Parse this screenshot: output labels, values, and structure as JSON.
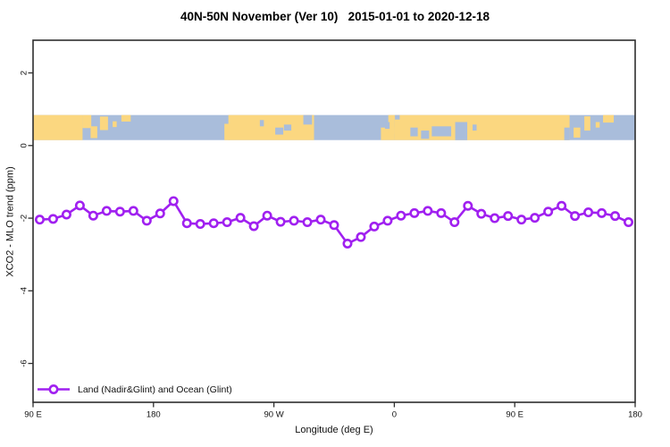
{
  "chart_data": {
    "type": "line",
    "title": "40N-50N November (Ver 10)   2015-01-01 to 2020-12-18",
    "xlabel": "Longitude (deg E)",
    "ylabel": "XCO2 - MLO trend (ppm)",
    "xlim": [
      90,
      540
    ],
    "ylim": [
      -7.07,
      2.9
    ],
    "grid": "off",
    "x_ticks": [
      {
        "v": 90,
        "label": "90 E"
      },
      {
        "v": 180,
        "label": "180"
      },
      {
        "v": 270,
        "label": "90 W"
      },
      {
        "v": 360,
        "label": "0"
      },
      {
        "v": 450,
        "label": "90 E"
      },
      {
        "v": 540,
        "label": "180"
      }
    ],
    "y_ticks": [
      {
        "v": 2,
        "label": "2"
      },
      {
        "v": 0,
        "label": "0"
      },
      {
        "v": -2,
        "label": "-2"
      },
      {
        "v": -4,
        "label": "-4"
      },
      {
        "v": -6,
        "label": "-6"
      }
    ],
    "legend": {
      "label": "Land (Nadir&Glint) and Ocean (Glint)",
      "position": "bottom-left"
    },
    "colors": {
      "line": "#A020F0",
      "axis": "#2e2e2e",
      "land": "#FBD780",
      "ocean": "#A9BDDB",
      "text": "#111111"
    },
    "series": [
      {
        "name": "Land (Nadir&Glint) and Ocean (Glint)",
        "marker": "open-circle",
        "color": "#A020F0",
        "x": [
          95,
          105,
          115,
          125,
          135,
          145,
          155,
          165,
          175,
          185,
          195,
          205,
          215,
          225,
          235,
          245,
          255,
          265,
          275,
          285,
          295,
          305,
          315,
          325,
          335,
          345,
          355,
          365,
          375,
          385,
          395,
          405,
          415,
          425,
          435,
          445,
          455,
          465,
          475,
          485,
          495,
          505,
          515,
          525,
          535
        ],
        "y": [
          -2.04,
          -2.02,
          -1.9,
          -1.65,
          -1.93,
          -1.8,
          -1.82,
          -1.8,
          -2.07,
          -1.87,
          -1.53,
          -2.14,
          -2.16,
          -2.14,
          -2.11,
          -1.99,
          -2.22,
          -1.93,
          -2.1,
          -2.07,
          -2.11,
          -2.04,
          -2.19,
          -2.7,
          -2.52,
          -2.23,
          -2.07,
          -1.93,
          -1.86,
          -1.8,
          -1.86,
          -2.11,
          -1.66,
          -1.88,
          -2.0,
          -1.94,
          -2.04,
          -1.99,
          -1.82,
          -1.66,
          -1.94,
          -1.84,
          -1.86,
          -1.94,
          -2.11
        ]
      }
    ],
    "map_band": {
      "description": "40N-50N land/ocean strip, longitude 90E eastward to 180 (wraps 450 deg)",
      "v_top": 0.84,
      "v_bottom": 0.15,
      "regions": [
        [
          90,
          540,
          0,
          1,
          "ocean"
        ],
        [
          90,
          127,
          0,
          1,
          "land"
        ],
        [
          127,
          133.5,
          0,
          0.52,
          "land"
        ],
        [
          133,
          138,
          0.45,
          0.92,
          "land"
        ],
        [
          140,
          146,
          0.06,
          0.6,
          "land"
        ],
        [
          149.5,
          152.5,
          0.25,
          0.48,
          "land"
        ],
        [
          156,
          163,
          0,
          0.26,
          "land"
        ],
        [
          233,
          237,
          0.35,
          1,
          "land"
        ],
        [
          236,
          300,
          0,
          1,
          "land"
        ],
        [
          350,
          360,
          0.5,
          1,
          "land"
        ],
        [
          355.5,
          360,
          0,
          0.75,
          "land"
        ],
        [
          360,
          491,
          0,
          1,
          "land"
        ],
        [
          494,
          499,
          0.5,
          0.9,
          "land"
        ],
        [
          502,
          506.5,
          0.05,
          0.62,
          "land"
        ],
        [
          510.5,
          513.5,
          0.28,
          0.5,
          "land"
        ],
        [
          516,
          524,
          0,
          0.3,
          "land"
        ],
        [
          259.5,
          262.5,
          0.2,
          0.45,
          "ocean"
        ],
        [
          271,
          277,
          0.5,
          0.78,
          "ocean"
        ],
        [
          277.5,
          283,
          0.38,
          0.62,
          "ocean"
        ],
        [
          292,
          298.5,
          0,
          0.38,
          "ocean"
        ],
        [
          353,
          356.5,
          0.28,
          0.55,
          "ocean"
        ],
        [
          360.5,
          364,
          0,
          0.18,
          "ocean"
        ],
        [
          372,
          377.5,
          0.5,
          0.85,
          "ocean"
        ],
        [
          380,
          386,
          0.62,
          0.95,
          "ocean"
        ],
        [
          388,
          402.5,
          0.45,
          0.85,
          "ocean"
        ],
        [
          405.5,
          414.5,
          0.28,
          1,
          "ocean"
        ],
        [
          418.5,
          421.5,
          0.38,
          0.62,
          "ocean"
        ],
        [
          487,
          491,
          0.5,
          1,
          "ocean"
        ]
      ]
    }
  }
}
